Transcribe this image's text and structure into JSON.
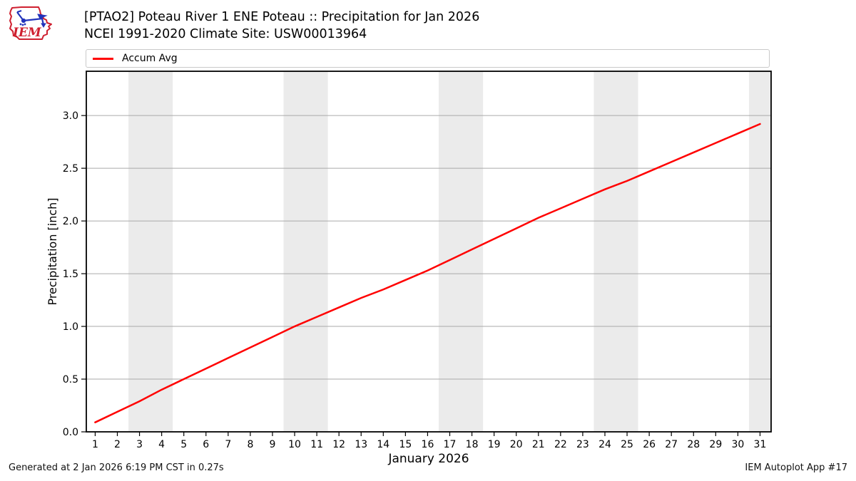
{
  "header": {
    "logo": {
      "text": "IEM",
      "outline_color": "#cf2030",
      "station_color": "#2233bb"
    },
    "title_line1": "[PTAO2] Poteau River 1 ENE Poteau :: Precipitation for Jan 2026",
    "title_line2": "NCEI 1991-2020 Climate Site: USW00013964"
  },
  "legend": {
    "items": [
      {
        "label": "Accum Avg",
        "color": "#ff0000"
      }
    ]
  },
  "chart_data": {
    "type": "line",
    "title": "",
    "xlabel": "January 2026",
    "ylabel": "Precipitation [inch]",
    "x": [
      1,
      2,
      3,
      4,
      5,
      6,
      7,
      8,
      9,
      10,
      11,
      12,
      13,
      14,
      15,
      16,
      17,
      18,
      19,
      20,
      21,
      22,
      23,
      24,
      25,
      26,
      27,
      28,
      29,
      30,
      31
    ],
    "series": [
      {
        "name": "Accum Avg",
        "color": "#ff0000",
        "values": [
          0.09,
          0.19,
          0.29,
          0.4,
          0.5,
          0.6,
          0.7,
          0.8,
          0.9,
          1.0,
          1.09,
          1.18,
          1.27,
          1.35,
          1.44,
          1.53,
          1.63,
          1.73,
          1.83,
          1.93,
          2.03,
          2.12,
          2.21,
          2.3,
          2.38,
          2.47,
          2.56,
          2.65,
          2.74,
          2.83,
          2.92
        ]
      }
    ],
    "xlim": [
      0.6,
      31.5
    ],
    "ylim": [
      0,
      3.42
    ],
    "xticks": [
      1,
      2,
      3,
      4,
      5,
      6,
      7,
      8,
      9,
      10,
      11,
      12,
      13,
      14,
      15,
      16,
      17,
      18,
      19,
      20,
      21,
      22,
      23,
      24,
      25,
      26,
      27,
      28,
      29,
      30,
      31
    ],
    "yticks": [
      0.0,
      0.5,
      1.0,
      1.5,
      2.0,
      2.5,
      3.0
    ],
    "ytick_labels": [
      "0.0",
      "0.5",
      "1.0",
      "1.5",
      "2.0",
      "2.5",
      "3.0"
    ],
    "grid": "horizontal",
    "gridline_color": "#aaaaaa",
    "weekend_bands": {
      "color": "#ebebeb",
      "ranges": [
        [
          2.5,
          4.5
        ],
        [
          9.5,
          11.5
        ],
        [
          16.5,
          18.5
        ],
        [
          23.5,
          25.5
        ],
        [
          30.5,
          31.5
        ]
      ]
    },
    "legend_position": "top"
  },
  "footer": {
    "left": "Generated at 2 Jan 2026 6:19 PM CST in 0.27s",
    "right": "IEM Autoplot App #17"
  }
}
